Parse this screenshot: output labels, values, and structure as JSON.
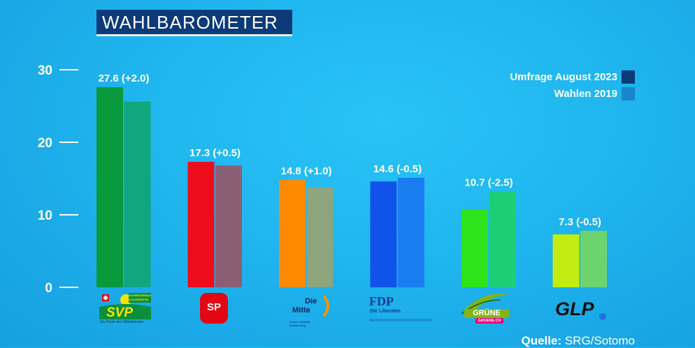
{
  "header": {
    "title": "WAHLBAROMETER"
  },
  "legend": {
    "items": [
      {
        "label": "Umfrage August 2023",
        "color": "#0d3a78"
      },
      {
        "label": "Wahlen 2019",
        "color": "#1886c9"
      }
    ]
  },
  "source": {
    "label": "Quelle:",
    "value": "SRG/Sotomo"
  },
  "logos": {
    "svp": {
      "text": "SVP",
      "badge": "SCHWEIZERISCHE VOLKSPARTEI",
      "tagline": "Die Partei des Mittelstandes"
    },
    "sp": {
      "text": "SP"
    },
    "mitte": {
      "text1": "Die",
      "text2": "Mitte",
      "tagline": "Freiheit. Solidarität. Verantwortung."
    },
    "fdp": {
      "text": "FDP",
      "sub": "Die Liberalen"
    },
    "grune": {
      "text": "GRÜNE",
      "sub": "GRUENE.CH"
    },
    "glp": {
      "text": "GLP"
    }
  },
  "chart_data": {
    "type": "bar",
    "title": "WAHLBAROMETER",
    "categories": [
      "SVP",
      "SP",
      "Die Mitte",
      "FDP",
      "GRÜNE",
      "GLP"
    ],
    "ylim": [
      0,
      30
    ],
    "yticks": [
      0,
      10,
      20,
      30
    ],
    "grid": false,
    "legend_position": "top-right",
    "series": [
      {
        "name": "Umfrage August 2023",
        "values": [
          27.6,
          17.3,
          14.8,
          14.6,
          10.7,
          7.3
        ],
        "colors": [
          "#0a9a3e",
          "#ee0d1b",
          "#ff8a00",
          "#1152ea",
          "#2de31a",
          "#c2ed12"
        ]
      },
      {
        "name": "Wahlen 2019",
        "values": [
          25.6,
          16.8,
          13.8,
          15.1,
          13.2,
          7.8
        ],
        "colors": [
          "#12a67f",
          "#8c5e76",
          "#8da47c",
          "#1a7ef3",
          "#1ccf76",
          "#6dd36d"
        ]
      }
    ],
    "data_labels": [
      "27.6 (+2.0)",
      "17.3 (+0.5)",
      "14.8 (+1.0)",
      "14.6 (-0.5)",
      "10.7 (-2.5)",
      "7.3 (-0.5)"
    ]
  }
}
